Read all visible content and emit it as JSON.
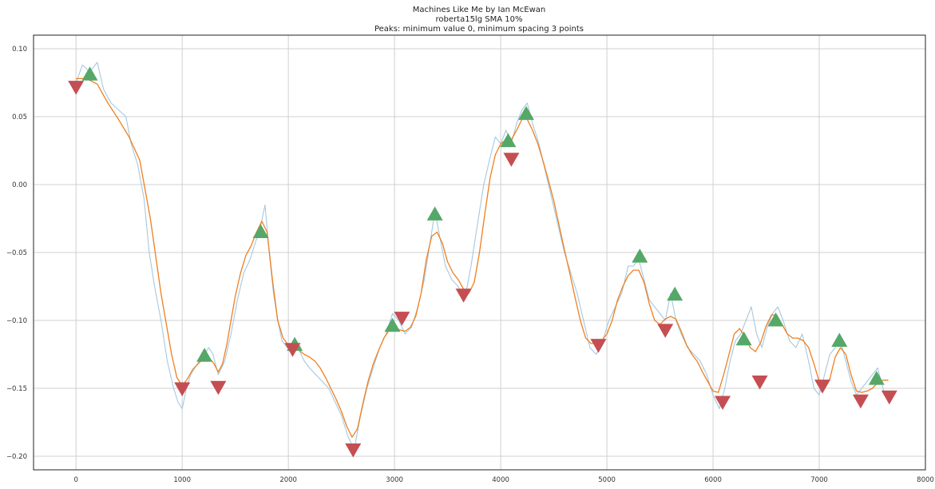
{
  "chart_data": {
    "type": "line",
    "title": "Machines Like Me by Ian McEwan",
    "subtitle_lines": [
      "roberta15lg SMA 10%",
      "Peaks: minimum value 0, minimum spacing 3 points"
    ],
    "xlabel": "",
    "ylabel": "",
    "xlim": [
      -400,
      8000
    ],
    "ylim": [
      -0.21,
      0.11
    ],
    "xticks": [
      0,
      1000,
      2000,
      3000,
      4000,
      5000,
      6000,
      7000,
      8000
    ],
    "xtick_labels": [
      "0",
      "1000",
      "2000",
      "3000",
      "4000",
      "5000",
      "6000",
      "7000",
      "8000"
    ],
    "yticks": [
      0.1,
      0.05,
      0.0,
      -0.05,
      -0.1,
      -0.15,
      -0.2
    ],
    "ytick_labels": [
      "0.10",
      "0.05",
      "0.00",
      "−0.05",
      "−0.10",
      "−0.15",
      "−0.20"
    ],
    "grid": true,
    "colors": {
      "raw": "#a6c8e0",
      "smooth": "#f07f1e",
      "peak": "#55a868",
      "trough": "#c44e52"
    },
    "series": [
      {
        "role": "raw",
        "x": [
          0,
          60,
          130,
          200,
          260,
          330,
          400,
          470,
          520,
          580,
          640,
          690,
          740,
          800,
          860,
          920,
          960,
          1000,
          1040,
          1080,
          1120,
          1160,
          1210,
          1250,
          1290,
          1340,
          1400,
          1460,
          1520,
          1580,
          1640,
          1700,
          1740,
          1780,
          1820,
          1860,
          1900,
          1940,
          1990,
          2040,
          2090,
          2150,
          2200,
          2260,
          2320,
          2380,
          2440,
          2500,
          2560,
          2620,
          2680,
          2740,
          2800,
          2860,
          2920,
          2980,
          3040,
          3100,
          3160,
          3220,
          3280,
          3330,
          3380,
          3430,
          3480,
          3540,
          3600,
          3660,
          3720,
          3780,
          3840,
          3900,
          3950,
          4000,
          4050,
          4100,
          4150,
          4200,
          4250,
          4300,
          4360,
          4420,
          4480,
          4540,
          4600,
          4660,
          4720,
          4780,
          4840,
          4900,
          4960,
          5020,
          5080,
          5140,
          5200,
          5250,
          5300,
          5350,
          5400,
          5450,
          5500,
          5550,
          5600,
          5650,
          5700,
          5760,
          5820,
          5880,
          5940,
          6000,
          6060,
          6110,
          6160,
          6210,
          6260,
          6310,
          6360,
          6410,
          6460,
          6510,
          6560,
          6610,
          6660,
          6720,
          6780,
          6840,
          6900,
          6950,
          7000,
          7050,
          7100,
          7150,
          7200,
          7250,
          7300,
          7350,
          7400,
          7450,
          7500,
          7550,
          7600,
          7650
        ],
        "y": [
          0.075,
          0.088,
          0.083,
          0.09,
          0.07,
          0.06,
          0.055,
          0.05,
          0.03,
          0.015,
          -0.01,
          -0.05,
          -0.075,
          -0.1,
          -0.13,
          -0.15,
          -0.16,
          -0.165,
          -0.15,
          -0.14,
          -0.135,
          -0.13,
          -0.125,
          -0.12,
          -0.125,
          -0.14,
          -0.13,
          -0.11,
          -0.085,
          -0.065,
          -0.055,
          -0.04,
          -0.03,
          -0.015,
          -0.05,
          -0.08,
          -0.1,
          -0.115,
          -0.12,
          -0.125,
          -0.12,
          -0.13,
          -0.135,
          -0.14,
          -0.145,
          -0.15,
          -0.16,
          -0.17,
          -0.185,
          -0.195,
          -0.17,
          -0.15,
          -0.135,
          -0.12,
          -0.11,
          -0.095,
          -0.1,
          -0.11,
          -0.105,
          -0.09,
          -0.07,
          -0.045,
          -0.02,
          -0.04,
          -0.06,
          -0.07,
          -0.075,
          -0.085,
          -0.06,
          -0.03,
          0.0,
          0.02,
          0.035,
          0.03,
          0.04,
          0.03,
          0.045,
          0.055,
          0.06,
          0.045,
          0.03,
          0.01,
          -0.01,
          -0.03,
          -0.05,
          -0.065,
          -0.08,
          -0.1,
          -0.12,
          -0.125,
          -0.115,
          -0.1,
          -0.09,
          -0.08,
          -0.06,
          -0.06,
          -0.055,
          -0.07,
          -0.085,
          -0.09,
          -0.095,
          -0.1,
          -0.08,
          -0.1,
          -0.11,
          -0.12,
          -0.125,
          -0.13,
          -0.14,
          -0.155,
          -0.165,
          -0.15,
          -0.13,
          -0.115,
          -0.11,
          -0.1,
          -0.09,
          -0.11,
          -0.12,
          -0.105,
          -0.095,
          -0.09,
          -0.1,
          -0.115,
          -0.12,
          -0.11,
          -0.13,
          -0.15,
          -0.155,
          -0.14,
          -0.125,
          -0.12,
          -0.115,
          -0.13,
          -0.145,
          -0.155,
          -0.15,
          -0.145,
          -0.14,
          -0.135,
          -0.15,
          -0.16
        ]
      },
      {
        "role": "smooth",
        "x": [
          0,
          100,
          200,
          300,
          400,
          500,
          600,
          700,
          800,
          900,
          950,
          1000,
          1050,
          1100,
          1150,
          1200,
          1250,
          1300,
          1340,
          1380,
          1420,
          1460,
          1500,
          1550,
          1600,
          1650,
          1700,
          1750,
          1800,
          1850,
          1900,
          1950,
          2000,
          2050,
          2100,
          2150,
          2200,
          2250,
          2300,
          2350,
          2400,
          2450,
          2500,
          2550,
          2600,
          2650,
          2700,
          2750,
          2800,
          2850,
          2900,
          2950,
          3000,
          3050,
          3100,
          3150,
          3200,
          3250,
          3300,
          3350,
          3400,
          3450,
          3500,
          3550,
          3600,
          3650,
          3700,
          3750,
          3800,
          3850,
          3900,
          3950,
          4000,
          4050,
          4100,
          4150,
          4200,
          4250,
          4300,
          4350,
          4400,
          4450,
          4500,
          4550,
          4600,
          4650,
          4700,
          4750,
          4800,
          4850,
          4900,
          4950,
          5000,
          5050,
          5100,
          5150,
          5200,
          5250,
          5300,
          5350,
          5400,
          5450,
          5500,
          5550,
          5600,
          5650,
          5700,
          5750,
          5800,
          5850,
          5900,
          5950,
          6000,
          6050,
          6100,
          6150,
          6200,
          6250,
          6300,
          6350,
          6400,
          6450,
          6500,
          6550,
          6600,
          6650,
          6700,
          6750,
          6800,
          6850,
          6900,
          6950,
          7000,
          7050,
          7100,
          7150,
          7200,
          7250,
          7300,
          7350,
          7400,
          7450,
          7500,
          7550,
          7600,
          7650
        ],
        "y": [
          0.078,
          0.078,
          0.074,
          0.06,
          0.048,
          0.035,
          0.018,
          -0.025,
          -0.08,
          -0.125,
          -0.142,
          -0.148,
          -0.143,
          -0.136,
          -0.132,
          -0.128,
          -0.127,
          -0.132,
          -0.138,
          -0.132,
          -0.118,
          -0.1,
          -0.082,
          -0.065,
          -0.052,
          -0.045,
          -0.035,
          -0.027,
          -0.035,
          -0.07,
          -0.1,
          -0.113,
          -0.118,
          -0.12,
          -0.122,
          -0.125,
          -0.127,
          -0.13,
          -0.135,
          -0.142,
          -0.15,
          -0.158,
          -0.167,
          -0.178,
          -0.186,
          -0.18,
          -0.162,
          -0.145,
          -0.132,
          -0.122,
          -0.113,
          -0.107,
          -0.105,
          -0.107,
          -0.108,
          -0.105,
          -0.097,
          -0.08,
          -0.055,
          -0.038,
          -0.035,
          -0.043,
          -0.057,
          -0.065,
          -0.07,
          -0.077,
          -0.08,
          -0.072,
          -0.05,
          -0.022,
          0.005,
          0.022,
          0.03,
          0.033,
          0.033,
          0.04,
          0.048,
          0.048,
          0.04,
          0.03,
          0.017,
          0.003,
          -0.012,
          -0.03,
          -0.048,
          -0.065,
          -0.083,
          -0.1,
          -0.113,
          -0.117,
          -0.117,
          -0.115,
          -0.11,
          -0.1,
          -0.085,
          -0.075,
          -0.067,
          -0.063,
          -0.063,
          -0.072,
          -0.088,
          -0.1,
          -0.103,
          -0.099,
          -0.097,
          -0.099,
          -0.108,
          -0.118,
          -0.125,
          -0.13,
          -0.138,
          -0.145,
          -0.152,
          -0.153,
          -0.14,
          -0.125,
          -0.11,
          -0.106,
          -0.112,
          -0.12,
          -0.123,
          -0.116,
          -0.104,
          -0.096,
          -0.096,
          -0.103,
          -0.11,
          -0.113,
          -0.113,
          -0.115,
          -0.12,
          -0.132,
          -0.145,
          -0.148,
          -0.143,
          -0.127,
          -0.12,
          -0.125,
          -0.14,
          -0.152,
          -0.153,
          -0.152,
          -0.15,
          -0.146,
          -0.144,
          -0.144
        ]
      }
    ],
    "peaks": {
      "x": [
        130,
        1210,
        1740,
        2060,
        2980,
        3380,
        4070,
        4240,
        5310,
        5640,
        6290,
        6590,
        7190,
        7540
      ],
      "y": [
        0.081,
        -0.126,
        -0.035,
        -0.118,
        -0.104,
        -0.022,
        0.032,
        0.052,
        -0.053,
        -0.081,
        -0.114,
        -0.1,
        -0.115,
        -0.143
      ]
    },
    "troughs": {
      "x": [
        0,
        1000,
        1340,
        2040,
        2610,
        3070,
        3650,
        4100,
        4920,
        5550,
        6090,
        6440,
        7030,
        7390,
        7660
      ],
      "y": [
        0.072,
        -0.15,
        -0.149,
        -0.121,
        -0.195,
        -0.098,
        -0.081,
        0.019,
        -0.118,
        -0.107,
        -0.16,
        -0.145,
        -0.148,
        -0.159,
        -0.156
      ]
    }
  }
}
